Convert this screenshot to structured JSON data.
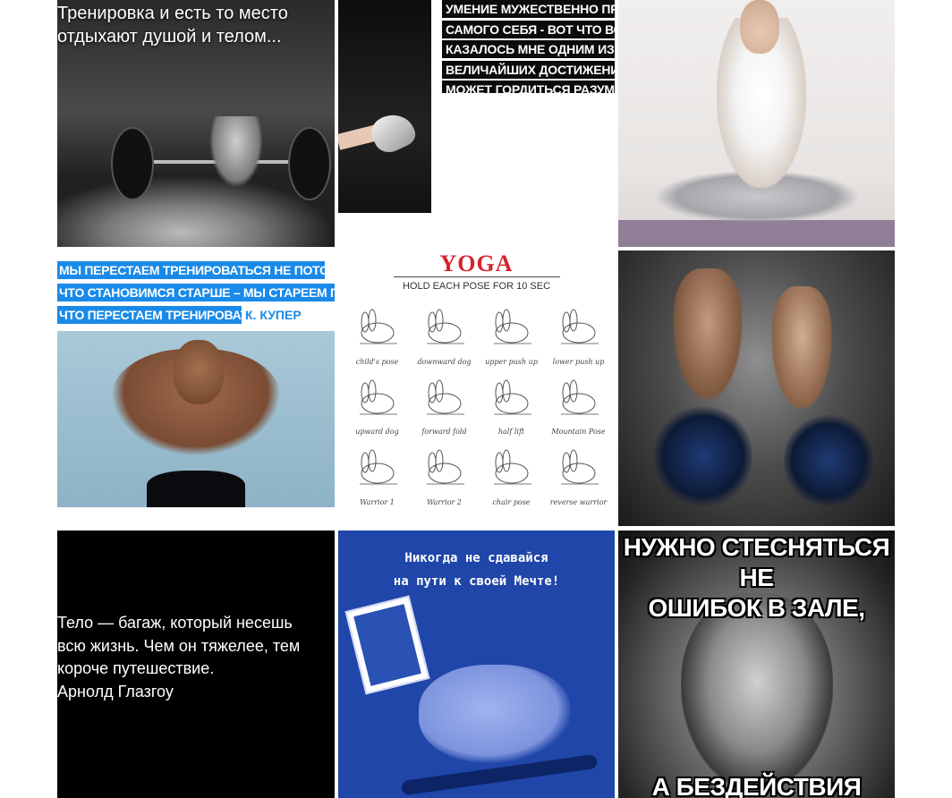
{
  "tiles": {
    "barbell": {
      "caption_lines": [
        "Тренировка и есть то место",
        "отдыхают душой и телом..."
      ]
    },
    "quote_strips": {
      "lines": [
        "УМЕНИЕ МУЖЕСТВЕННО ПРЕ",
        "САМОГО СЕБЯ - ВОТ ЧТО ВСЕ",
        "КАЗАЛОСЬ МНЕ ОДНИМ ИЗ СА",
        "ВЕЛИЧАЙШИХ ДОСТИЖЕНИЙ,",
        "МОЖЕТ ГОРДИТЬСЯ РАЗУМН"
      ]
    },
    "cooper": {
      "lines": [
        "МЫ ПЕРЕСТАЕМ ТРЕНИРОВАТЬСЯ НЕ ПОТОМУ,",
        "ЧТО СТАНОВИМСЯ СТАРШЕ – МЫ СТАРЕЕМ ПОТОМУ,",
        "ЧТО ПЕРЕСТАЕМ ТРЕНИРОВАТЬСЯ!"
      ],
      "author": "К. КУПЕР",
      "label_color": "#1a8ae8"
    },
    "yoga": {
      "title": "YOGA",
      "subtitle": "HOLD EACH POSE FOR 10 SEC",
      "title_color": "#d6232a",
      "poses": [
        "child's pose",
        "downward dog",
        "upper push up",
        "lower push up",
        "upward dog",
        "forward fold",
        "half lift",
        "Mountain Pose",
        "Warrior 1",
        "Warrior 2",
        "chair pose",
        "reverse warrior"
      ]
    },
    "black_quote": {
      "lines": [
        "Тело — багаж, который несешь",
        "всю жизнь. Чем он тяжелее, тем",
        "короче путешествие.",
        "Арнолд Глазгоу"
      ]
    },
    "rhino": {
      "lines": [
        "Никогда не сдавайся",
        "на пути к своей Мечте!"
      ],
      "bg_color": "#1f46a8"
    },
    "arnold": {
      "top_lines": [
        "НУЖНО СТЕСНЯТЬСЯ НЕ",
        "ОШИБОК В ЗАЛЕ,"
      ],
      "bottom_line": "А БЕЗДЕЙСТВИЯ ДОМА!"
    }
  }
}
